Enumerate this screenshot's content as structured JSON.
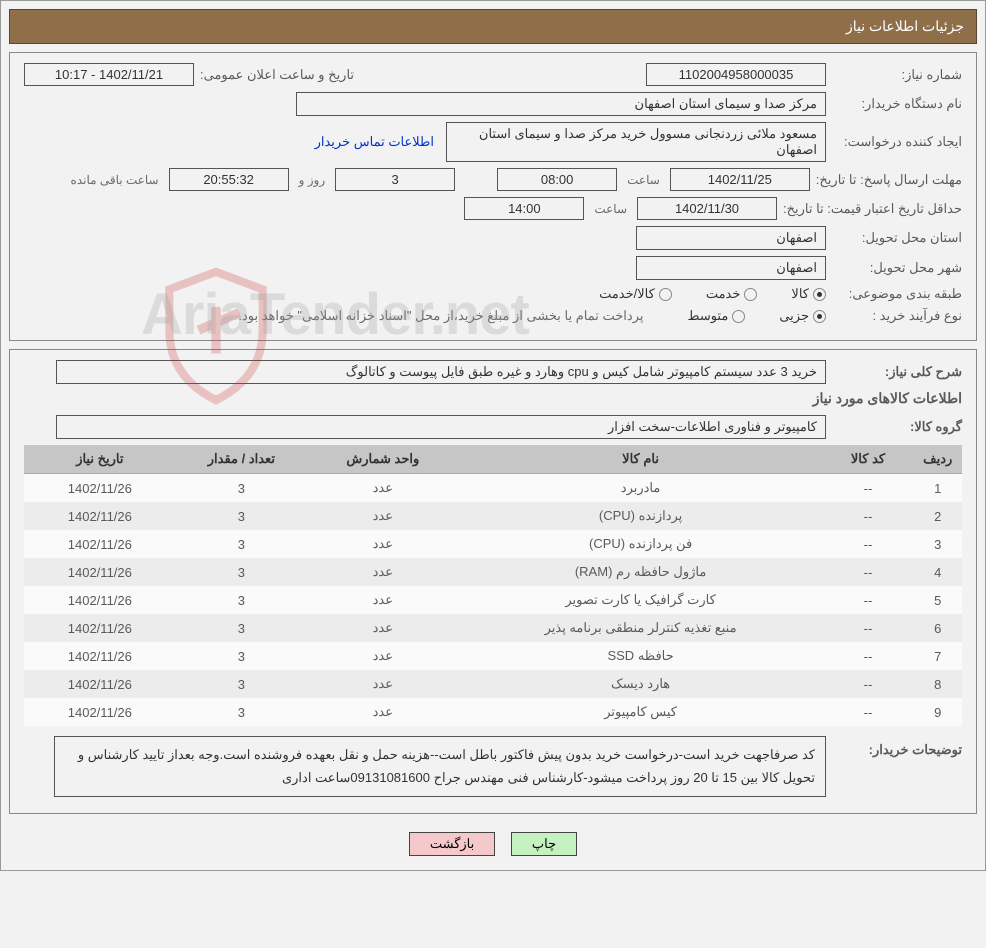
{
  "header": {
    "title": "جزئیات اطلاعات نیاز"
  },
  "fields": {
    "need_number_label": "شماره نیاز:",
    "need_number": "1102004958000035",
    "announce_label": "تاریخ و ساعت اعلان عمومی:",
    "announce_value": "1402/11/21 - 10:17",
    "buyer_org_label": "نام دستگاه خریدار:",
    "buyer_org": "مرکز صدا و سیمای استان اصفهان",
    "req_creator_label": "ایجاد کننده درخواست:",
    "req_creator": "مسعود ملائی زردنجانی مسوول خرید مرکز صدا و سیمای استان اصفهان",
    "contact_link": "اطلاعات تماس خریدار",
    "reply_deadline_label": "مهلت ارسال پاسخ: تا تاریخ:",
    "reply_date": "1402/11/25",
    "time_label": "ساعت",
    "reply_time": "08:00",
    "remain_days": "3",
    "roz_va": "روز و",
    "remain_hms": "20:55:32",
    "remain_text": "ساعت باقی مانده",
    "price_validity_label": "حداقل تاریخ اعتبار قیمت: تا تاریخ:",
    "price_date": "1402/11/30",
    "price_time": "14:00",
    "delivery_province_label": "استان محل تحویل:",
    "delivery_province": "اصفهان",
    "delivery_city_label": "شهر محل تحویل:",
    "delivery_city": "اصفهان",
    "category_label": "طبقه بندی موضوعی:",
    "cat_goods": "کالا",
    "cat_service": "خدمت",
    "cat_goods_service": "کالا/خدمت",
    "process_label": "نوع فرآیند خرید :",
    "proc_partial": "جزیی",
    "proc_medium": "متوسط",
    "payment_note": "پرداخت تمام یا بخشی از مبلغ خرید،از محل \"اسناد خزانه اسلامی\" خواهد بود."
  },
  "need_desc": {
    "label": "شرح کلی نیاز:",
    "value": "خرید 3 عدد سیستم کامپیوتر شامل کیس و cpu وهارد و غیره طبق فایل پیوست و کاتالوگ"
  },
  "goods_section_title": "اطلاعات کالاهای مورد نیاز",
  "goods_group": {
    "label": "گروه کالا:",
    "value": "کامپیوتر و فناوری اطلاعات-سخت افزار"
  },
  "table": {
    "columns": [
      "ردیف",
      "کد کالا",
      "نام کالا",
      "واحد شمارش",
      "تعداد / مقدار",
      "تاریخ نیاز"
    ],
    "rows": [
      [
        "1",
        "--",
        "مادربرد",
        "عدد",
        "3",
        "1402/11/26"
      ],
      [
        "2",
        "--",
        "پردازنده (CPU)",
        "عدد",
        "3",
        "1402/11/26"
      ],
      [
        "3",
        "--",
        "فن پردازنده (CPU)",
        "عدد",
        "3",
        "1402/11/26"
      ],
      [
        "4",
        "--",
        "ماژول حافظه رم (RAM)",
        "عدد",
        "3",
        "1402/11/26"
      ],
      [
        "5",
        "--",
        "کارت گرافیک یا کارت تصویر",
        "عدد",
        "3",
        "1402/11/26"
      ],
      [
        "6",
        "--",
        "منبع تغذیه کنترلر منطقی برنامه پذیر",
        "عدد",
        "3",
        "1402/11/26"
      ],
      [
        "7",
        "--",
        "حافظه SSD",
        "عدد",
        "3",
        "1402/11/26"
      ],
      [
        "8",
        "--",
        "هارد دیسک",
        "عدد",
        "3",
        "1402/11/26"
      ],
      [
        "9",
        "--",
        "کیس کامپیوتر",
        "عدد",
        "3",
        "1402/11/26"
      ]
    ]
  },
  "buyer_note": {
    "label": "توضیحات خریدار:",
    "value": "کد صرفاجهت خرید است-درخواست خرید بدون پیش فاکتور باطل است--هزینه حمل و نقل بعهده فروشنده است.وجه بعداز تایید  کارشناس و تحویل کالا بین 15 تا 20 روز پرداخت میشود-کارشناس فنی مهندس جراح 09131081600ساعت اداری"
  },
  "buttons": {
    "print": "چاپ",
    "back": "بازگشت"
  },
  "watermark": "AriaTender.net",
  "colors": {
    "header_bg": "#8f6e4a",
    "page_bg": "#f2f2f2",
    "th_bg": "#c6c6c6",
    "btn_green": "#c5f0c0",
    "btn_pink": "#f5c8cc",
    "link": "#0033cc"
  }
}
